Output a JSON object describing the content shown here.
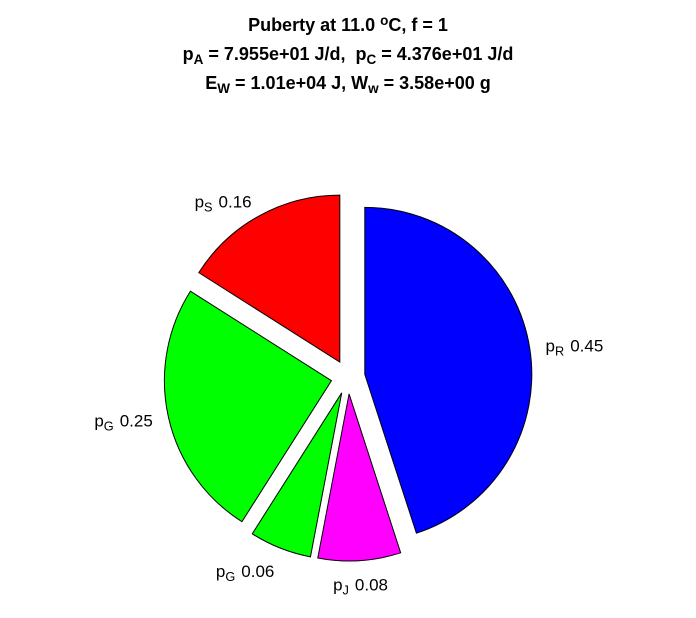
{
  "chart_data": {
    "type": "pie",
    "title": [
      [
        {
          "text": "Puberty at 11.0 "
        },
        {
          "text": "o",
          "script": "sup"
        },
        {
          "text": "C, f = 1"
        }
      ],
      [
        {
          "text": "p"
        },
        {
          "text": "A",
          "script": "sub"
        },
        {
          "text": " = 7.955e+01 J/d,  p"
        },
        {
          "text": "C",
          "script": "sub"
        },
        {
          "text": " = 4.376e+01 J/d"
        }
      ],
      [
        {
          "text": "E"
        },
        {
          "text": "W",
          "script": "sub"
        },
        {
          "text": " = 1.01e+04 J, W"
        },
        {
          "text": "w",
          "script": "sub"
        },
        {
          "text": " = 3.58e+00 g"
        }
      ]
    ],
    "categories": [
      [
        {
          "text": "p"
        },
        {
          "text": "R",
          "script": "sub"
        }
      ],
      [
        {
          "text": "p"
        },
        {
          "text": "J",
          "script": "sub"
        }
      ],
      [
        {
          "text": "p"
        },
        {
          "text": "G",
          "script": "sub"
        }
      ],
      [
        {
          "text": "p"
        },
        {
          "text": "G",
          "script": "sub"
        }
      ],
      [
        {
          "text": "p"
        },
        {
          "text": "S",
          "script": "sub"
        }
      ]
    ],
    "values": [
      0.45,
      0.08,
      0.06,
      0.25,
      0.16
    ],
    "colors": [
      "#0000ff",
      "#ff00ff",
      "#00ff00",
      "#00ff00",
      "#ff0000"
    ],
    "explode": true
  }
}
